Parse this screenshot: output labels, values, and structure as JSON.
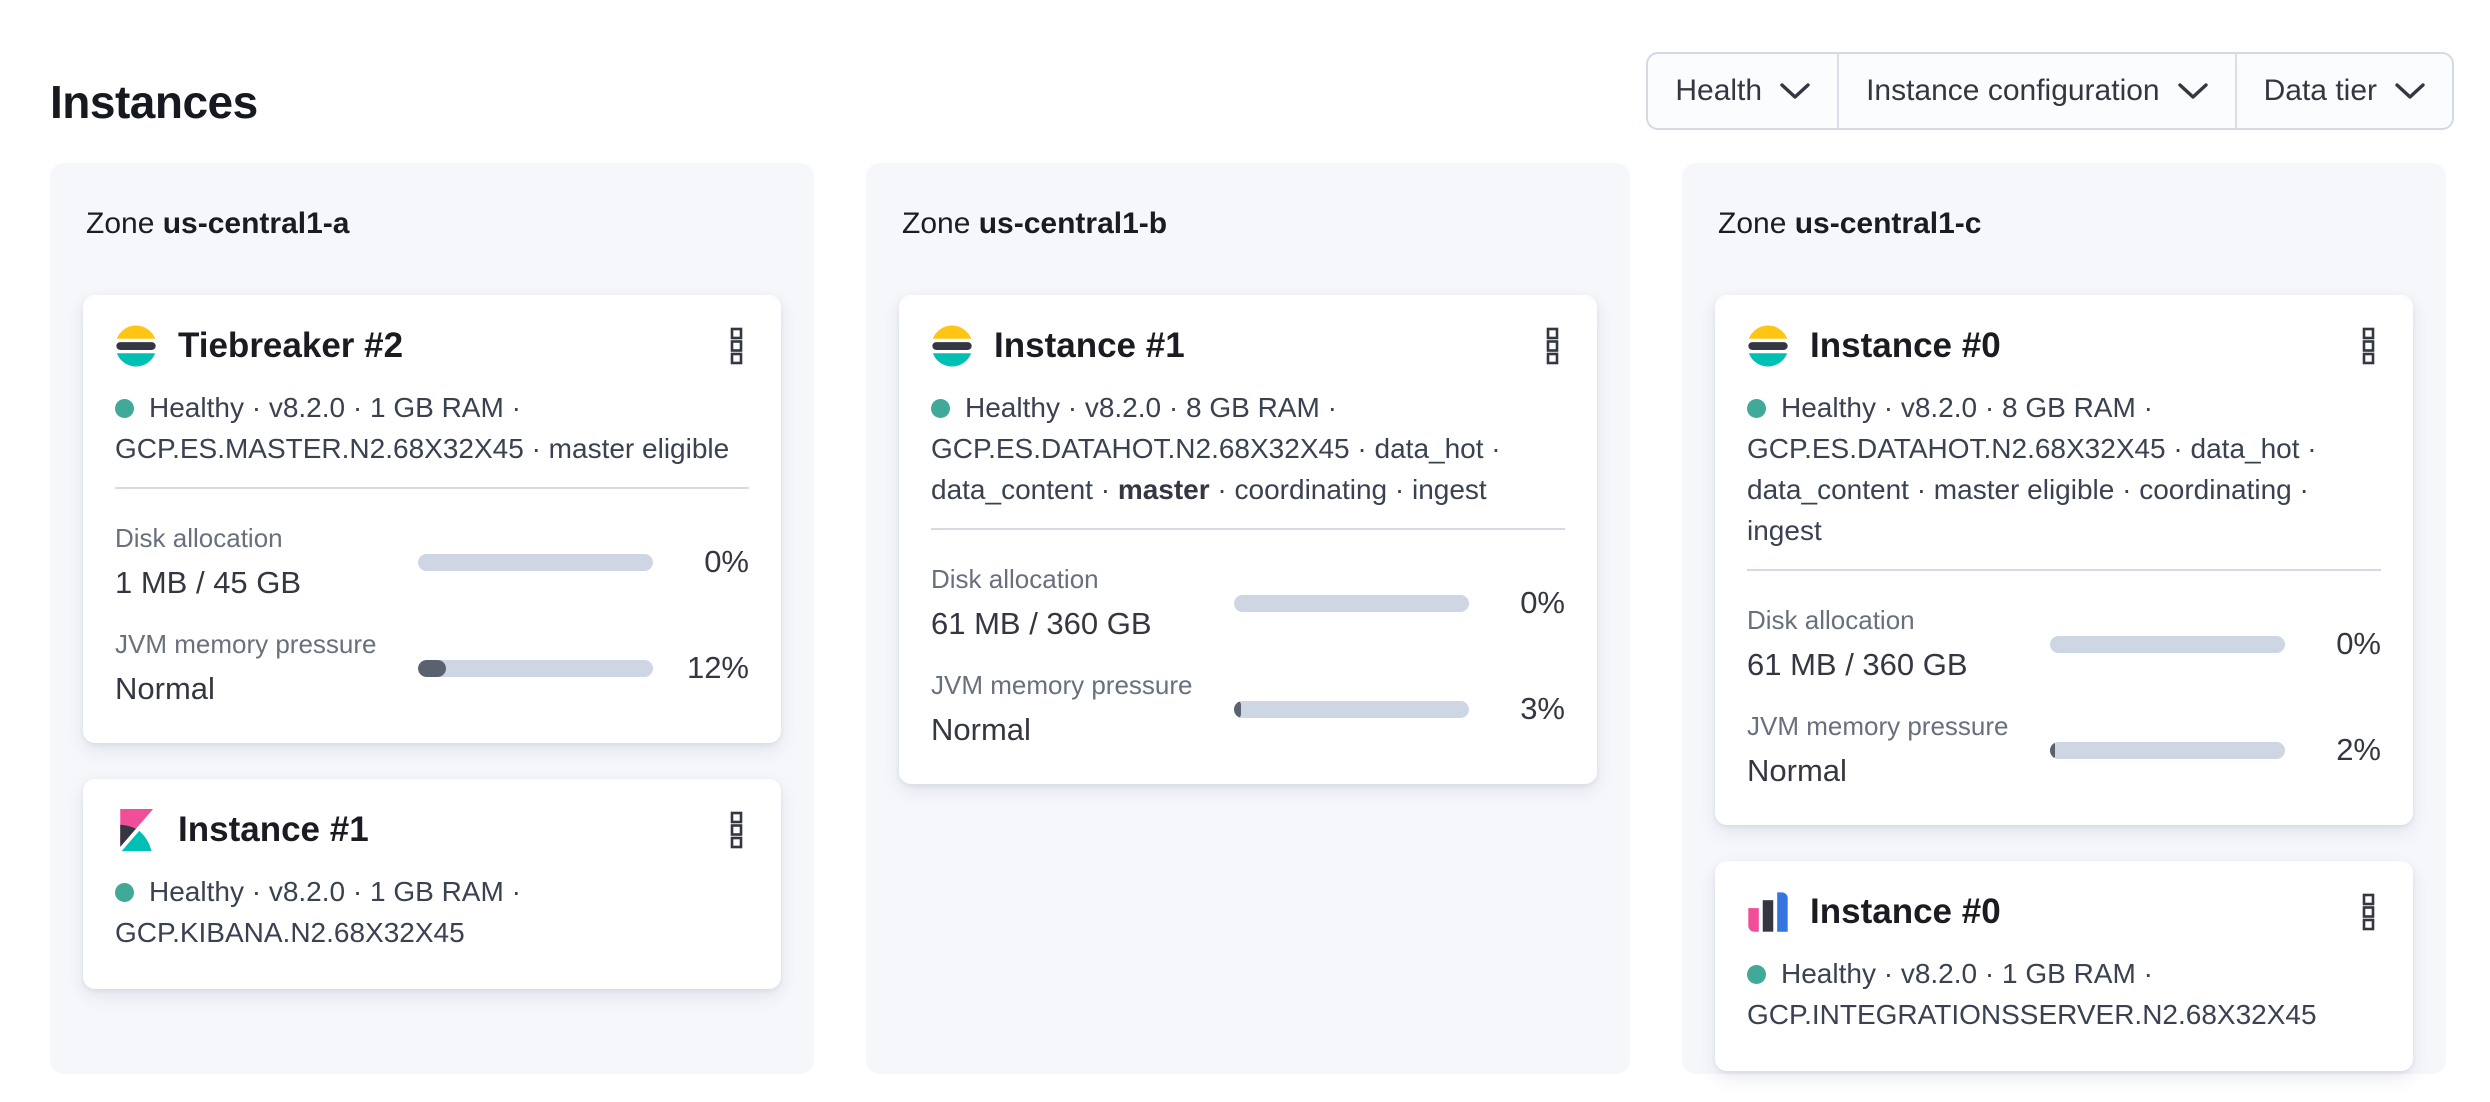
{
  "page": {
    "title": "Instances"
  },
  "filter_bar": {
    "health": {
      "label": "Health"
    },
    "instance_configuration": {
      "label": "Instance configuration"
    },
    "data_tier": {
      "label": "Data tier"
    }
  },
  "colors": {
    "healthy_dot": "#41a998",
    "bar_track": "#cfd6e3",
    "bar_fill": "#5a6270",
    "panel_bg": "#f5f7fb",
    "elasticsearch_logo": [
      "#fec514",
      "#343741",
      "#00bfb3"
    ],
    "kibana_logo": [
      "#f04e98",
      "#343741",
      "#00bfb3"
    ],
    "integrations_server_logo": [
      "#f04e98",
      "#343741",
      "#3575e0"
    ]
  },
  "zones": [
    {
      "prefix": "Zone",
      "name": "us-central1-a",
      "cards": [
        {
          "icon": "elasticsearch-logo",
          "title": "Tiebreaker #2",
          "meta1": "Healthy · v8.2.0 · 1 GB RAM ·",
          "meta2": "GCP.ES.MASTER.N2.68X32X45 · master eligible",
          "metrics": {
            "disk": {
              "label": "Disk allocation",
              "value": "1 MB / 45 GB",
              "percent": "0%"
            },
            "jvm": {
              "label": "JVM memory pressure",
              "value": "Normal",
              "percent": "12%"
            }
          }
        },
        {
          "icon": "kibana-logo",
          "title": "Instance #1",
          "meta1": "Healthy · v8.2.0 · 1 GB RAM ·",
          "meta2": "GCP.KIBANA.N2.68X32X45"
        }
      ]
    },
    {
      "prefix": "Zone",
      "name": "us-central1-b",
      "cards": [
        {
          "icon": "elasticsearch-logo",
          "title": "Instance #1",
          "meta1": "Healthy · v8.2.0 · 8 GB RAM ·",
          "meta2": "GCP.ES.DATAHOT.N2.68X32X45 · data_hot ·",
          "meta3_pre": "data_content · ",
          "meta3_bold": "master",
          "meta3_post": " · coordinating · ingest",
          "metrics": {
            "disk": {
              "label": "Disk allocation",
              "value": "61 MB / 360 GB",
              "percent": "0%"
            },
            "jvm": {
              "label": "JVM memory pressure",
              "value": "Normal",
              "percent": "3%"
            }
          }
        }
      ]
    },
    {
      "prefix": "Zone",
      "name": "us-central1-c",
      "cards": [
        {
          "icon": "elasticsearch-logo",
          "title": "Instance #0",
          "meta1": "Healthy · v8.2.0 · 8 GB RAM ·",
          "meta2": "GCP.ES.DATAHOT.N2.68X32X45 · data_hot ·",
          "meta3": "data_content · master eligible · coordinating · ingest",
          "metrics": {
            "disk": {
              "label": "Disk allocation",
              "value": "61 MB / 360 GB",
              "percent": "0%"
            },
            "jvm": {
              "label": "JVM memory pressure",
              "value": "Normal",
              "percent": "2%"
            }
          }
        },
        {
          "icon": "integrations-server-logo",
          "title": "Instance #0",
          "meta1": "Healthy · v8.2.0 · 1 GB RAM ·",
          "meta2": "GCP.INTEGRATIONSSERVER.N2.68X32X45"
        }
      ]
    }
  ]
}
